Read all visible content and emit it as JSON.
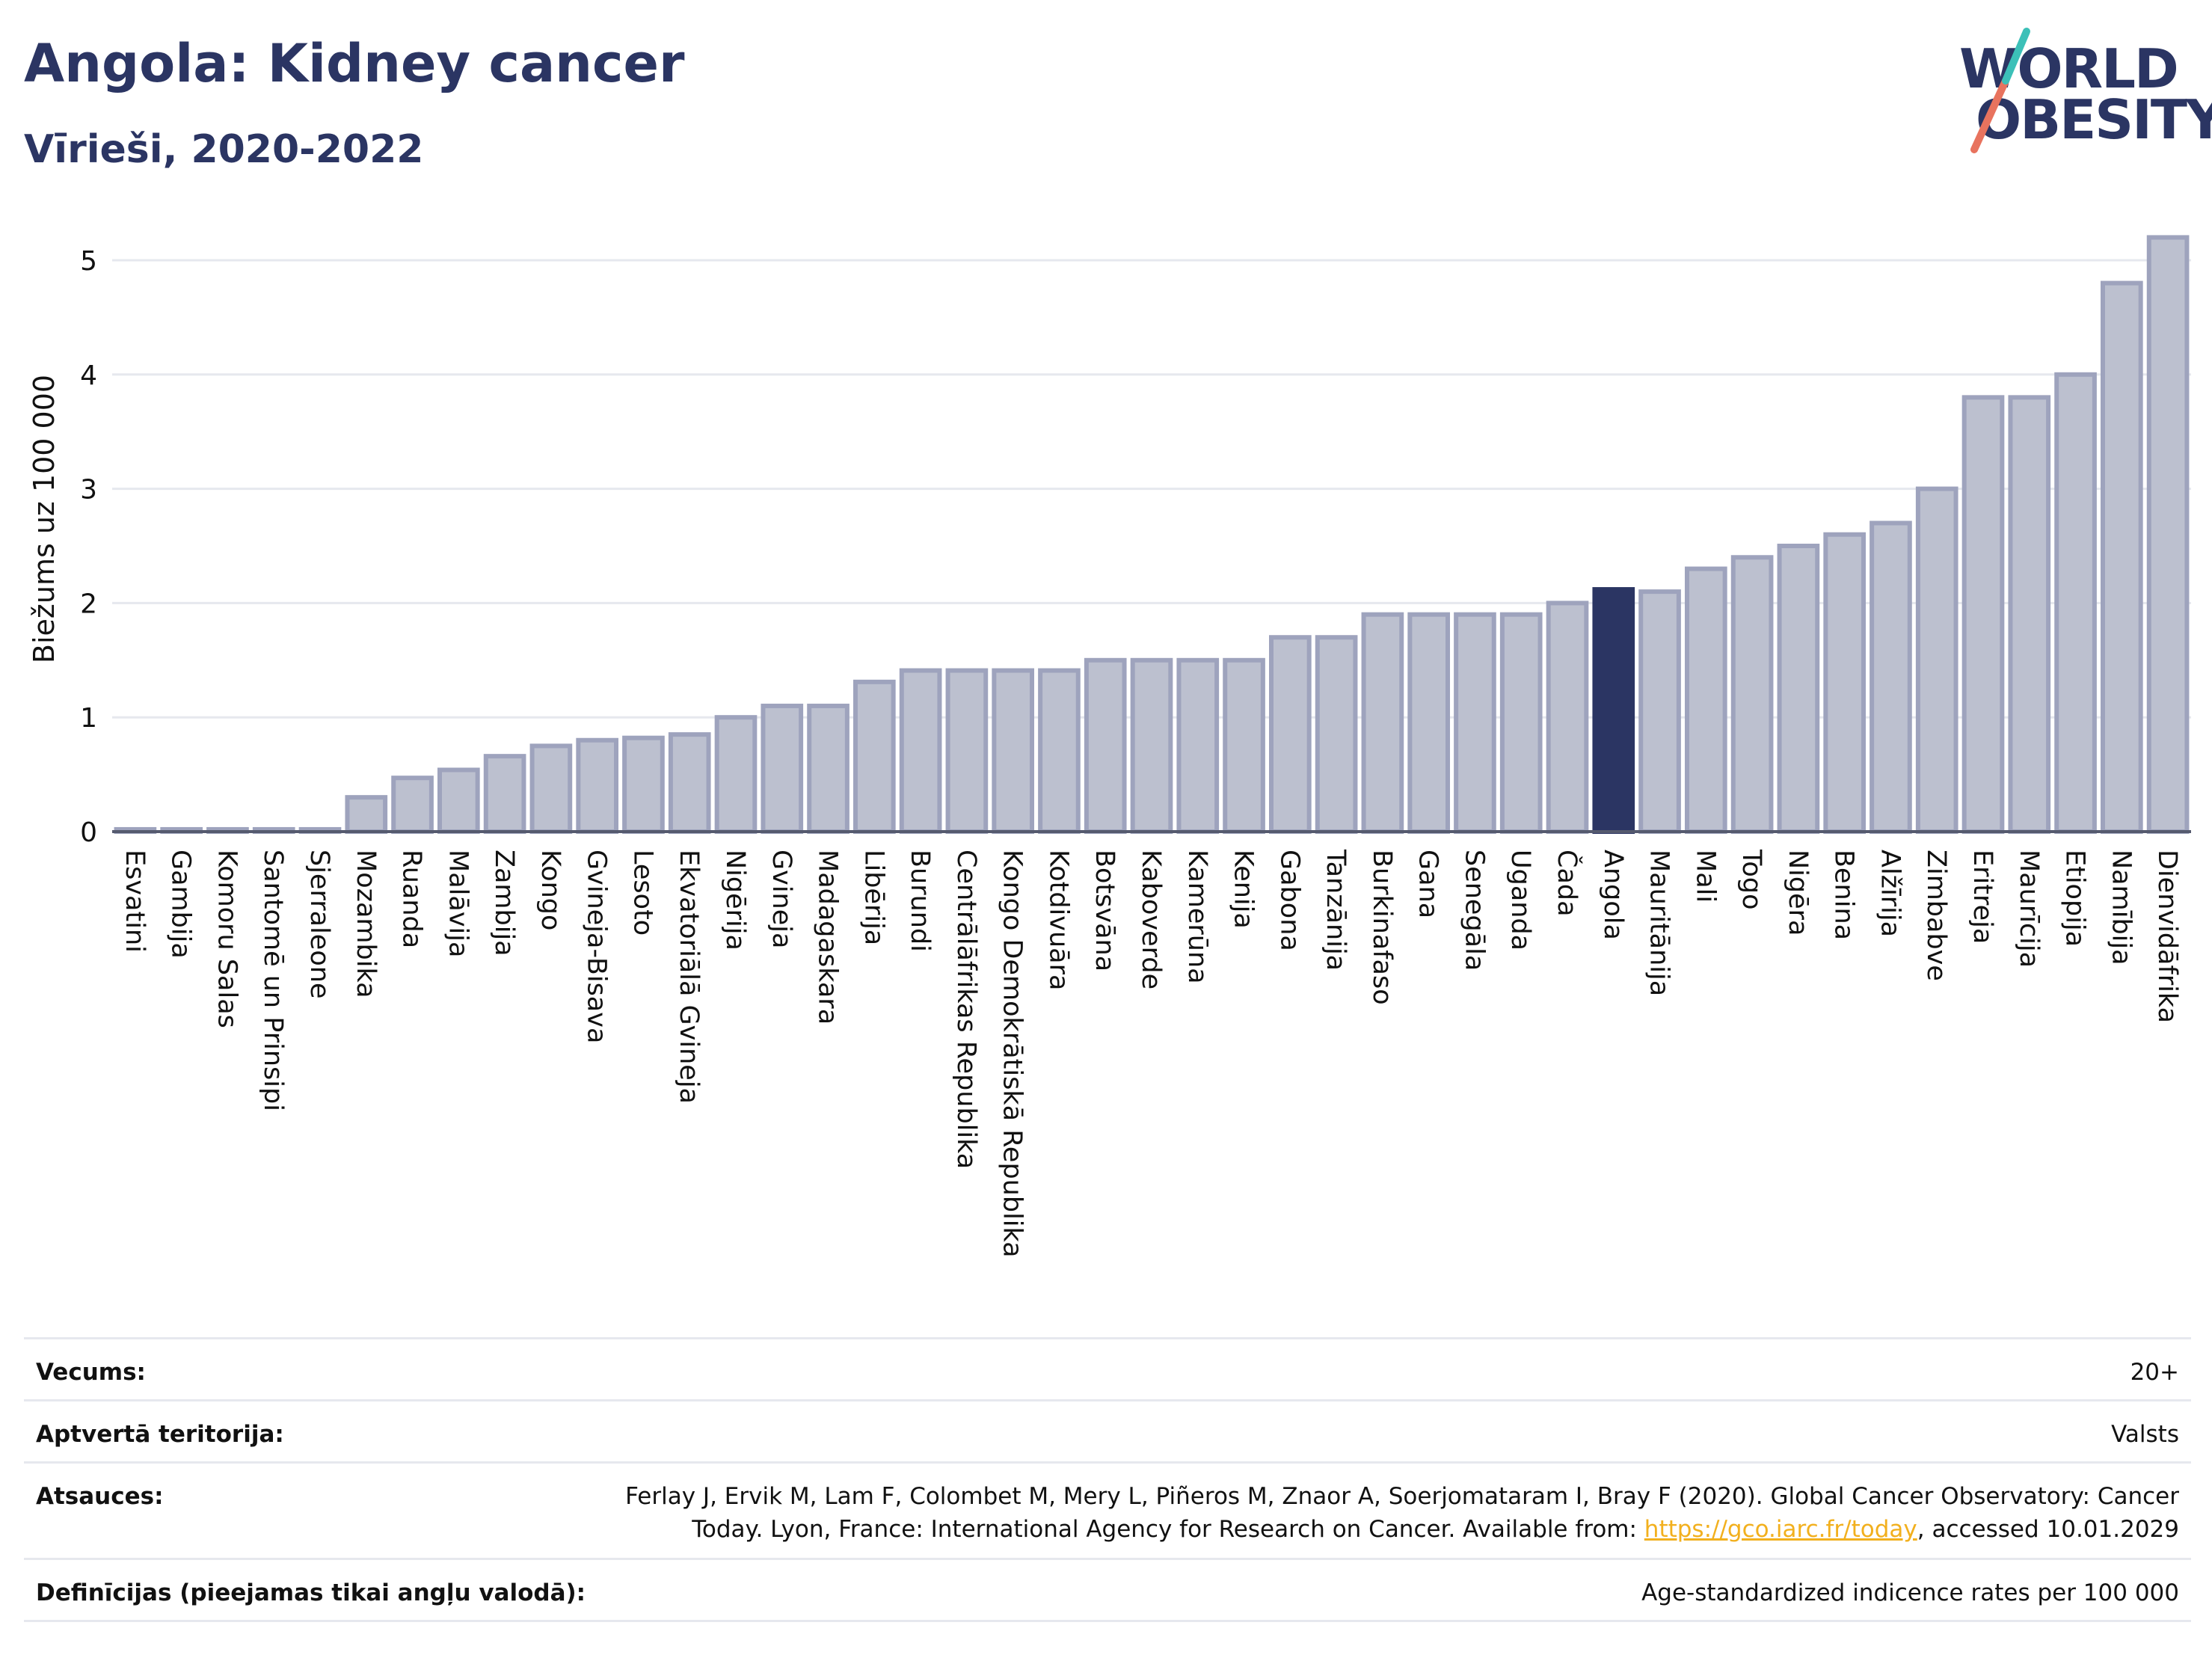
{
  "header": {
    "title": "Angola: Kidney cancer",
    "subtitle": "Vīrieši, 2020-2022"
  },
  "logo": {
    "line1": "WORLD",
    "line2": "OBESITY",
    "accent_color": "#e8735e",
    "accent_color2": "#3cc0b8"
  },
  "colors": {
    "bar": "#bcc0cf",
    "bar_stroke": "#9ea3bd",
    "highlight": "#2b3563",
    "grid": "#e6e8ee"
  },
  "chart_data": {
    "type": "bar",
    "ylabel": "Biežums uz 100 000",
    "ylim": [
      0,
      5.5
    ],
    "yticks": [
      0,
      1,
      2,
      3,
      4,
      5
    ],
    "highlight": "Angola",
    "categories": [
      "Esvatini",
      "Gambija",
      "Komoru Salas",
      "Santomē un Prinsipi",
      "Sjerraleone",
      "Mozambika",
      "Ruanda",
      "Malāvija",
      "Zambija",
      "Kongo",
      "Gvineja-Bisava",
      "Lesoto",
      "Ekvatoriālā Gvineja",
      "Nigērija",
      "Gvineja",
      "Madagaskara",
      "Libērija",
      "Burundi",
      "Centrālāfrikas Republika",
      "Kongo Demokrātiskā Republika",
      "Kotdivuāra",
      "Botsvāna",
      "Kaboverde",
      "Kamerūna",
      "Kenija",
      "Gabona",
      "Tanzānija",
      "Burkinafaso",
      "Gana",
      "Senegāla",
      "Uganda",
      "Čada",
      "Angola",
      "Mauritānija",
      "Mali",
      "Togo",
      "Nigēra",
      "Benina",
      "Alžīrija",
      "Zimbabve",
      "Eritreja",
      "Maurīcija",
      "Etiopija",
      "Namībija",
      "Dienvidāfrika"
    ],
    "values": [
      0.02,
      0.02,
      0.02,
      0.02,
      0.02,
      0.3,
      0.47,
      0.54,
      0.66,
      0.75,
      0.8,
      0.82,
      0.85,
      1.0,
      1.1,
      1.1,
      1.31,
      1.41,
      1.41,
      1.41,
      1.41,
      1.5,
      1.5,
      1.5,
      1.5,
      1.7,
      1.7,
      1.9,
      1.9,
      1.9,
      1.9,
      2.0,
      2.12,
      2.1,
      2.3,
      2.4,
      2.5,
      2.6,
      2.7,
      3.0,
      3.8,
      3.8,
      4.0,
      4.8,
      5.2
    ]
  },
  "info": {
    "rows": [
      {
        "key": "Vecums:",
        "value": "20+"
      },
      {
        "key": "Aptvertā teritorija:",
        "value": "Valsts"
      },
      {
        "key": "Atsauces:",
        "value_line1": "Ferlay J, Ervik M, Lam F, Colombet M, Mery L, Piñeros M, Znaor A, Soerjomataram I, Bray F (2020). Global Cancer Observatory: Cancer",
        "value_line2_pre": "Today. Lyon, France: International Agency for Research on Cancer. Available from: ",
        "link": "https://gco.iarc.fr/today",
        "value_line2_post": ", accessed 10.01.2029"
      },
      {
        "key": "Definīcijas (pieejamas tikai angļu valodā):",
        "value": "Age-standardized indicence rates per 100 000"
      }
    ]
  }
}
